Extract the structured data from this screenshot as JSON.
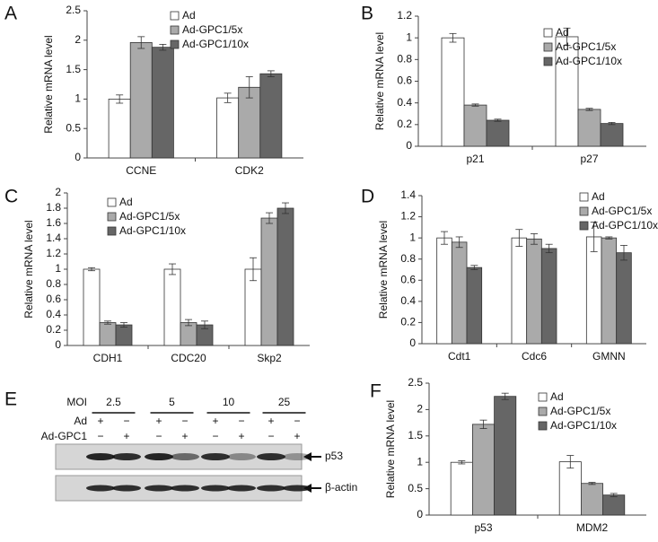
{
  "chart_data": [
    {
      "type": "bar",
      "panel": "A",
      "ylabel": "Relative mRNA level",
      "categories": [
        "CCNE",
        "CDK2"
      ],
      "series": [
        {
          "name": "Ad",
          "color": "#ffffff",
          "values": [
            1.0,
            1.02
          ],
          "errors": [
            0.07,
            0.08
          ]
        },
        {
          "name": "Ad-GPC1/5x",
          "color": "#aaaaaa",
          "values": [
            1.96,
            1.2
          ],
          "errors": [
            0.1,
            0.18
          ]
        },
        {
          "name": "Ad-GPC1/10x",
          "color": "#666666",
          "values": [
            1.88,
            1.43
          ],
          "errors": [
            0.05,
            0.05
          ]
        }
      ],
      "ylim": [
        0,
        2.5
      ],
      "yticks": [
        0,
        0.5,
        1,
        1.5,
        2,
        2.5
      ]
    },
    {
      "type": "bar",
      "panel": "B",
      "ylabel": "Relative mRNA level",
      "categories": [
        "p21",
        "p27"
      ],
      "series": [
        {
          "name": "Ad",
          "color": "#ffffff",
          "values": [
            1.0,
            1.01
          ],
          "errors": [
            0.04,
            0.08
          ]
        },
        {
          "name": "Ad-GPC1/5x",
          "color": "#aaaaaa",
          "values": [
            0.38,
            0.34
          ],
          "errors": [
            0.01,
            0.01
          ]
        },
        {
          "name": "Ad-GPC1/10x",
          "color": "#666666",
          "values": [
            0.24,
            0.21
          ],
          "errors": [
            0.01,
            0.01
          ]
        }
      ],
      "ylim": [
        0,
        1.2
      ],
      "yticks": [
        0,
        0.2,
        0.4,
        0.6,
        0.8,
        1,
        1.2
      ]
    },
    {
      "type": "bar",
      "panel": "C",
      "ylabel": "Relative mRNA level",
      "categories": [
        "CDH1",
        "CDC20",
        "Skp2"
      ],
      "series": [
        {
          "name": "Ad",
          "color": "#ffffff",
          "values": [
            1.0,
            1.0,
            1.0
          ],
          "errors": [
            0.02,
            0.07,
            0.15
          ]
        },
        {
          "name": "Ad-GPC1/5x",
          "color": "#aaaaaa",
          "values": [
            0.3,
            0.3,
            1.67
          ],
          "errors": [
            0.02,
            0.04,
            0.07
          ]
        },
        {
          "name": "Ad-GPC1/10x",
          "color": "#666666",
          "values": [
            0.27,
            0.27,
            1.8
          ],
          "errors": [
            0.03,
            0.05,
            0.07
          ]
        }
      ],
      "ylim": [
        0,
        2
      ],
      "yticks": [
        0,
        0.2,
        0.4,
        0.6,
        0.8,
        1,
        1.2,
        1.4,
        1.6,
        1.8,
        2
      ]
    },
    {
      "type": "bar",
      "panel": "D",
      "ylabel": "Relative mRNA level",
      "categories": [
        "Cdt1",
        "Cdc6",
        "GMNN"
      ],
      "series": [
        {
          "name": "Ad",
          "color": "#ffffff",
          "values": [
            1.0,
            1.0,
            1.01
          ],
          "errors": [
            0.06,
            0.08,
            0.14
          ]
        },
        {
          "name": "Ad-GPC1/5x",
          "color": "#aaaaaa",
          "values": [
            0.96,
            0.99,
            1.0
          ],
          "errors": [
            0.05,
            0.05,
            0.01
          ]
        },
        {
          "name": "Ad-GPC1/10x",
          "color": "#666666",
          "values": [
            0.72,
            0.9,
            0.86
          ],
          "errors": [
            0.02,
            0.04,
            0.07
          ]
        }
      ],
      "ylim": [
        0,
        1.4
      ],
      "yticks": [
        0,
        0.2,
        0.4,
        0.6,
        0.8,
        1,
        1.2,
        1.4
      ]
    },
    {
      "type": "bar",
      "panel": "F",
      "ylabel": "Relative mRNA level",
      "categories": [
        "p53",
        "MDM2"
      ],
      "series": [
        {
          "name": "Ad",
          "color": "#ffffff",
          "values": [
            1.0,
            1.01
          ],
          "errors": [
            0.03,
            0.12
          ]
        },
        {
          "name": "Ad-GPC1/5x",
          "color": "#aaaaaa",
          "values": [
            1.72,
            0.6
          ],
          "errors": [
            0.08,
            0.02
          ]
        },
        {
          "name": "Ad-GPC1/10x",
          "color": "#666666",
          "values": [
            2.25,
            0.38
          ],
          "errors": [
            0.06,
            0.03
          ]
        }
      ],
      "ylim": [
        0,
        2.5
      ],
      "yticks": [
        0,
        0.5,
        1,
        1.5,
        2,
        2.5
      ]
    }
  ],
  "blot": {
    "panel": "E",
    "moi_label": "MOI",
    "mois": [
      "2.5",
      "5",
      "10",
      "25"
    ],
    "rows": [
      {
        "name": "Ad",
        "signs": [
          "+",
          "−",
          "+",
          "−",
          "+",
          "−",
          "+",
          "−"
        ]
      },
      {
        "name": "Ad-GPC1",
        "signs": [
          "−",
          "+",
          "−",
          "+",
          "−",
          "+",
          "−",
          "+"
        ]
      }
    ],
    "bands": [
      "p53",
      "β-actin"
    ]
  }
}
